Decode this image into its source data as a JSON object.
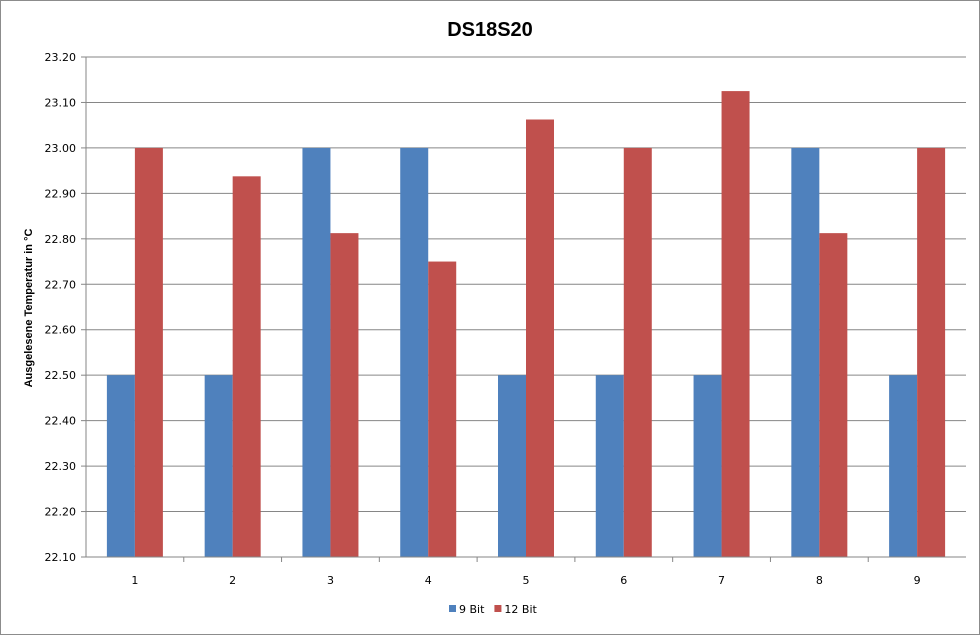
{
  "chart_data": {
    "type": "bar",
    "title": "DS18S20",
    "xlabel": "",
    "ylabel": "Ausgelesene Temperatur in °C",
    "categories": [
      "1",
      "2",
      "3",
      "4",
      "5",
      "6",
      "7",
      "8",
      "9"
    ],
    "series": [
      {
        "name": "9 Bit",
        "color": "#4F81BD",
        "values": [
          22.5,
          22.5,
          23.0,
          23.0,
          22.5,
          22.5,
          22.5,
          23.0,
          22.5
        ]
      },
      {
        "name": "12 Bit",
        "color": "#C0504D",
        "values": [
          23.0,
          22.9375,
          22.8125,
          22.75,
          23.0625,
          23.0,
          23.125,
          22.8125,
          23.0
        ]
      }
    ],
    "ylim": [
      22.1,
      23.2
    ],
    "yticks": [
      "22.10",
      "22.20",
      "22.30",
      "22.40",
      "22.50",
      "22.60",
      "22.70",
      "22.80",
      "22.90",
      "23.00",
      "23.10",
      "23.20"
    ],
    "grid": true,
    "legend_position": "bottom"
  }
}
